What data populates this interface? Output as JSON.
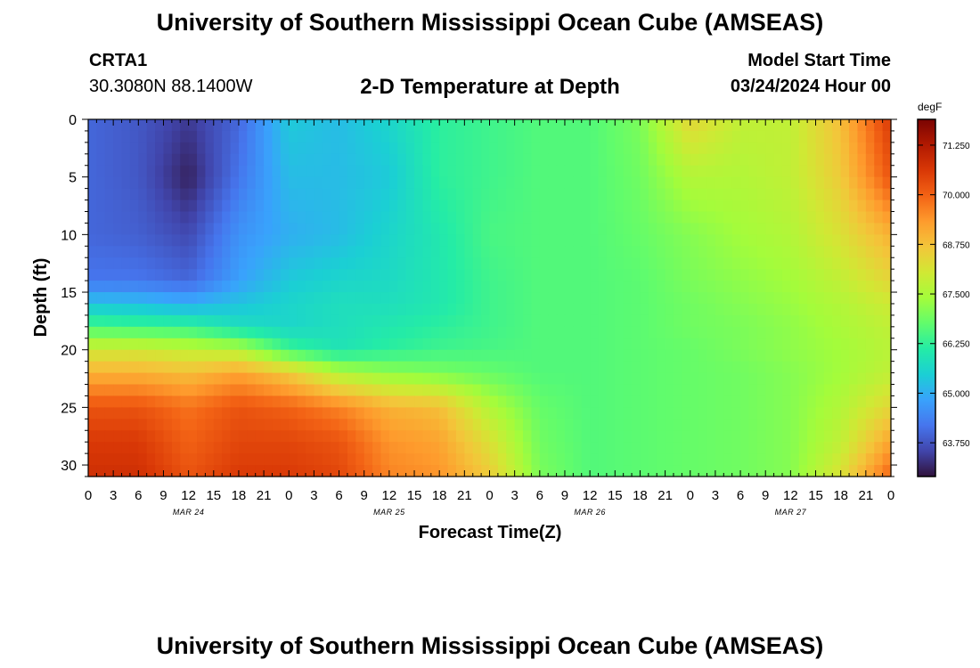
{
  "header": {
    "title": "University of Southern Mississippi Ocean Cube (AMSEAS)",
    "station": "CRTA1",
    "coordinates": "30.3080N  88.1400W",
    "chart_title": "2-D Temperature at Depth",
    "model_start_label": "Model Start Time",
    "model_start_value": "03/24/2024 Hour 00"
  },
  "footer": {
    "title": "University of Southern Mississippi Ocean Cube (AMSEAS)"
  },
  "colorbar": {
    "unit": "degF",
    "min": 62.9,
    "max": 71.9,
    "tick_values": [
      71.25,
      70.0,
      68.75,
      67.5,
      66.25,
      65.0,
      63.75
    ],
    "tick_labels": [
      "71.250",
      "70.000",
      "68.750",
      "67.500",
      "66.250",
      "65.000",
      "63.750"
    ],
    "colormap": [
      "#30123b",
      "#4145ab",
      "#4675ed",
      "#39a2fc",
      "#1bcfd4",
      "#24eca6",
      "#61fc6c",
      "#a4fc3b",
      "#d1e834",
      "#f3c63a",
      "#fe9b2d",
      "#f36315",
      "#d93806",
      "#b11901",
      "#7a0402"
    ]
  },
  "chart_data": {
    "type": "heatmap",
    "xlabel": "Forecast Time(Z)",
    "ylabel": "Depth (ft)",
    "x_range": [
      0,
      96
    ],
    "y_range": [
      0,
      31
    ],
    "y_inverted": true,
    "x_tick_labels": [
      "0",
      "3",
      "6",
      "9",
      "12",
      "15",
      "18",
      "21",
      "0",
      "3",
      "6",
      "9",
      "12",
      "15",
      "18",
      "21",
      "0",
      "3",
      "6",
      "9",
      "12",
      "15",
      "18",
      "21",
      "0",
      "3",
      "6",
      "9",
      "12",
      "15",
      "18",
      "21",
      "0"
    ],
    "y_tick_labels": [
      "0",
      "5",
      "10",
      "15",
      "20",
      "25",
      "30"
    ],
    "date_labels": [
      "MAR 24",
      "MAR 25",
      "MAR 26",
      "MAR 27"
    ],
    "depth_levels_ft": [
      0,
      5,
      10,
      14,
      16,
      18,
      20,
      22,
      25,
      28,
      31
    ],
    "time_hours": [
      0,
      6,
      12,
      18,
      24,
      30,
      36,
      42,
      48,
      54,
      60,
      66,
      72,
      78,
      84,
      90,
      96
    ],
    "values_degF": [
      [
        64.0,
        63.8,
        63.4,
        64.0,
        65.4,
        65.2,
        65.6,
        66.2,
        66.4,
        66.6,
        66.6,
        67.0,
        68.4,
        67.8,
        67.8,
        68.8,
        70.6
      ],
      [
        64.0,
        63.8,
        63.1,
        64.2,
        65.2,
        65.2,
        65.4,
        66.2,
        66.4,
        66.6,
        66.6,
        66.9,
        67.6,
        67.6,
        67.8,
        68.6,
        70.2
      ],
      [
        64.0,
        63.9,
        63.6,
        64.6,
        65.0,
        65.2,
        65.6,
        66.0,
        66.5,
        66.6,
        66.6,
        66.8,
        67.1,
        67.4,
        67.6,
        68.2,
        69.0
      ],
      [
        64.2,
        64.2,
        64.0,
        64.8,
        65.4,
        65.6,
        65.7,
        66.0,
        66.4,
        66.6,
        66.6,
        66.7,
        67.0,
        67.2,
        67.4,
        67.8,
        68.4
      ],
      [
        65.3,
        65.2,
        65.0,
        65.3,
        65.6,
        65.8,
        65.8,
        66.0,
        66.4,
        66.6,
        66.6,
        66.7,
        66.9,
        67.1,
        67.3,
        67.6,
        68.0
      ],
      [
        66.5,
        66.4,
        66.3,
        65.8,
        65.6,
        65.8,
        66.0,
        66.2,
        66.4,
        66.6,
        66.6,
        66.7,
        66.9,
        67.0,
        67.2,
        67.5,
        67.8
      ],
      [
        68.0,
        68.0,
        67.8,
        67.6,
        66.4,
        65.9,
        66.2,
        66.4,
        66.5,
        66.6,
        66.6,
        66.7,
        66.8,
        67.0,
        67.2,
        67.4,
        67.7
      ],
      [
        69.0,
        69.0,
        68.8,
        69.2,
        68.6,
        67.6,
        67.2,
        67.0,
        66.8,
        66.6,
        66.6,
        66.7,
        66.8,
        66.9,
        67.1,
        67.4,
        67.8
      ],
      [
        70.2,
        70.2,
        69.8,
        70.2,
        70.0,
        69.6,
        69.0,
        68.8,
        67.6,
        66.8,
        66.6,
        66.7,
        66.8,
        66.9,
        67.1,
        67.6,
        68.4
      ],
      [
        70.6,
        70.6,
        70.0,
        70.4,
        70.4,
        70.2,
        69.4,
        69.2,
        68.2,
        66.9,
        66.6,
        66.7,
        66.8,
        66.9,
        67.1,
        67.8,
        69.2
      ],
      [
        70.8,
        70.8,
        70.2,
        70.6,
        70.6,
        70.4,
        69.6,
        69.4,
        68.6,
        67.0,
        66.6,
        66.7,
        66.8,
        66.9,
        67.1,
        68.2,
        70.0
      ]
    ]
  }
}
